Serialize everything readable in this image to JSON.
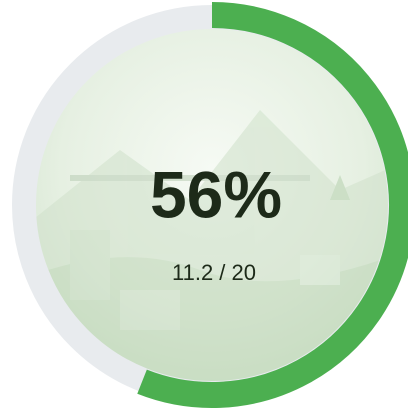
{
  "gauge": {
    "percent": 56,
    "percent_label": "56%",
    "detail": "11.2 / 20",
    "color": "#4caf50",
    "track_color": "#e8ebee"
  }
}
